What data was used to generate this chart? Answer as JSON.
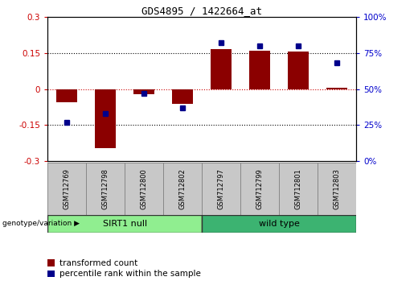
{
  "title": "GDS4895 / 1422664_at",
  "samples": [
    "GSM712769",
    "GSM712798",
    "GSM712800",
    "GSM712802",
    "GSM712797",
    "GSM712799",
    "GSM712801",
    "GSM712803"
  ],
  "bar_values": [
    -0.055,
    -0.245,
    -0.02,
    -0.06,
    0.165,
    0.16,
    0.155,
    0.005
  ],
  "dot_values_pct": [
    27,
    33,
    47,
    37,
    82,
    80,
    80,
    68
  ],
  "groups": [
    {
      "label": "SIRT1 null",
      "start": 0,
      "end": 4,
      "color": "#90EE90"
    },
    {
      "label": "wild type",
      "start": 4,
      "end": 8,
      "color": "#3CB371"
    }
  ],
  "ylim_left": [
    -0.3,
    0.3
  ],
  "ylim_right": [
    0,
    100
  ],
  "yticks_left": [
    -0.3,
    -0.15,
    0,
    0.15,
    0.3
  ],
  "yticks_right": [
    0,
    25,
    50,
    75,
    100
  ],
  "bar_color": "#8B0000",
  "dot_color": "#00008B",
  "left_tick_color": "#CC0000",
  "right_tick_color": "#0000CC",
  "hline_color": "#CC0000",
  "dotted_line_color": "#000000",
  "background_color": "#FFFFFF",
  "plot_bg_color": "#FFFFFF",
  "legend_red_label": "transformed count",
  "legend_blue_label": "percentile rank within the sample",
  "genotype_label": "genotype/variation"
}
